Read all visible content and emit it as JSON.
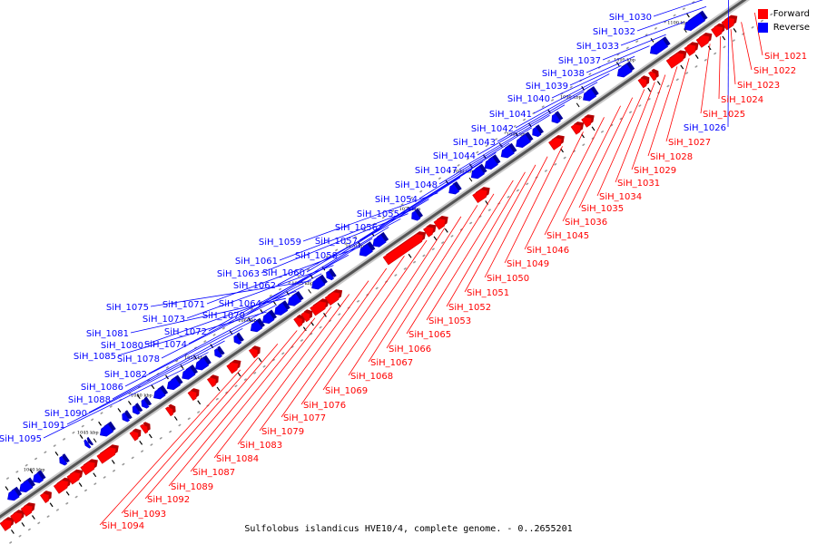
{
  "colors": {
    "forward": "#ff0000",
    "reverse": "#0000ff",
    "backbone": "#555555"
  },
  "legend": {
    "forward": "Forward",
    "reverse": "Reverse"
  },
  "caption": "Sulfolobus islandicus HVE10/4, complete genome. - 0..2655201",
  "ticks": [
    "1040 kbp",
    "1045 kbp",
    "1050 kbp",
    "1055 kbp",
    "1060 kbp",
    "1065 kbp",
    "1070 kbp",
    "1075 kbp",
    "1080 kbp",
    "1085 kbp",
    "1090 kbp",
    "1095 kbp",
    "1100 kbp",
    "1105 kbp"
  ],
  "reverse_genes": [
    "SiH_1026",
    "SiH_1030",
    "SiH_1032",
    "SiH_1033",
    "SiH_1037",
    "SiH_1038",
    "SiH_1039",
    "SiH_1040",
    "SiH_1041",
    "SiH_1042",
    "SiH_1043",
    "SiH_1044",
    "SiH_1047",
    "SiH_1048",
    "SiH_1054",
    "SiH_1055",
    "SiH_1056",
    "SiH_1057",
    "SiH_1058",
    "SiH_1059",
    "SiH_1060",
    "SiH_1061",
    "SiH_1062",
    "SiH_1063",
    "SiH_1064",
    "SiH_1070",
    "SiH_1071",
    "SiH_1072",
    "SiH_1073",
    "SiH_1074",
    "SiH_1075",
    "SiH_1078",
    "SiH_1080",
    "SiH_1081",
    "SiH_1082",
    "SiH_1085",
    "SiH_1086",
    "SiH_1088",
    "SiH_1090",
    "SiH_1091",
    "SiH_1095"
  ],
  "forward_genes": [
    "SiH_1021",
    "SiH_1022",
    "SiH_1023",
    "SiH_1024",
    "SiH_1025",
    "SiH_1027",
    "SiH_1028",
    "SiH_1029",
    "SiH_1031",
    "SiH_1034",
    "SiH_1035",
    "SiH_1036",
    "SiH_1045",
    "SiH_1046",
    "SiH_1049",
    "SiH_1050",
    "SiH_1051",
    "SiH_1052",
    "SiH_1053",
    "SiH_1065",
    "SiH_1066",
    "SiH_1067",
    "SiH_1068",
    "SiH_1069",
    "SiH_1076",
    "SiH_1077",
    "SiH_1079",
    "SiH_1083",
    "SiH_1084",
    "SiH_1087",
    "SiH_1089",
    "SiH_1092",
    "SiH_1093",
    "SiH_1094"
  ]
}
